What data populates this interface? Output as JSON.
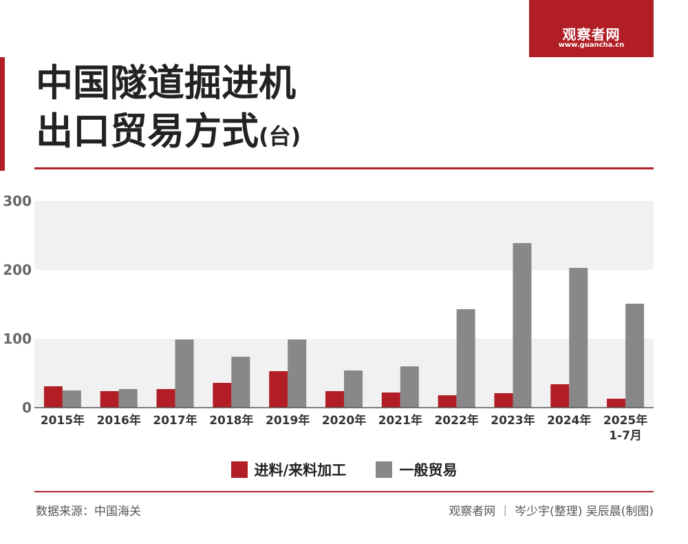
{
  "brand": {
    "name": "观察者网",
    "url": "www.guancha.cn"
  },
  "title": {
    "line1": "中国隧道掘进机",
    "line2": "出口贸易方式",
    "unit": "(台)"
  },
  "colors": {
    "accent": "#b11e25",
    "series1": "#b11e25",
    "series2": "#888888",
    "band": "#f1f1f1"
  },
  "chart_data": {
    "type": "bar",
    "categories": [
      "2015年",
      "2016年",
      "2017年",
      "2018年",
      "2019年",
      "2020年",
      "2021年",
      "2022年",
      "2023年",
      "2024年",
      "2025年\n1-7月"
    ],
    "series": [
      {
        "name": "进料/来料加工",
        "values": [
          31,
          24,
          27,
          36,
          53,
          24,
          22,
          18,
          21,
          34,
          13
        ]
      },
      {
        "name": "一般贸易",
        "values": [
          25,
          27,
          99,
          74,
          99,
          54,
          60,
          143,
          239,
          203,
          151
        ]
      }
    ],
    "yticks": [
      0,
      100,
      200,
      300
    ],
    "ylim": [
      0,
      300
    ],
    "grid": "alternating bands",
    "legend": "bottom-center"
  },
  "footer": {
    "source": "数据来源：中国海关",
    "credit": "观察者网 ｜ 岑少宇(整理)  吴辰晨(制图)"
  }
}
